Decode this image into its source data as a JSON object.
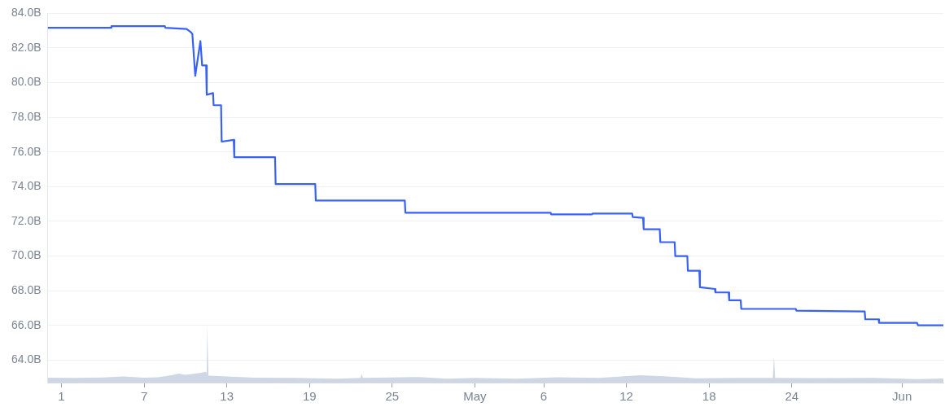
{
  "chart_data": {
    "type": "line",
    "grid": "y",
    "legend": false,
    "marker": "none",
    "xlim": [
      "--03-31",
      "--06-04"
    ],
    "xticks": [
      {
        "value": "--04-01",
        "label": "1"
      },
      {
        "value": "--04-07",
        "label": "7"
      },
      {
        "value": "--04-13",
        "label": "13"
      },
      {
        "value": "--04-19",
        "label": "19"
      },
      {
        "value": "--04-25",
        "label": "25"
      },
      {
        "value": "--05-01",
        "label": "May"
      },
      {
        "value": "--05-06",
        "label": "6"
      },
      {
        "value": "--05-12",
        "label": "12"
      },
      {
        "value": "--05-18",
        "label": "18"
      },
      {
        "value": "--05-24",
        "label": "24"
      },
      {
        "value": "--06-01",
        "label": "Jun"
      }
    ],
    "ylim": [
      62.7,
      84
    ],
    "yticks": [
      {
        "value": 64,
        "label": "64.0B"
      },
      {
        "value": 66,
        "label": "66.0B"
      },
      {
        "value": 68,
        "label": "68.0B"
      },
      {
        "value": 70,
        "label": "70.0B"
      },
      {
        "value": 72,
        "label": "72.0B"
      },
      {
        "value": 74,
        "label": "74.0B"
      },
      {
        "value": 76,
        "label": "76.0B"
      },
      {
        "value": 78,
        "label": "78.0B"
      },
      {
        "value": 80,
        "label": "80.0B"
      },
      {
        "value": 82,
        "label": "82.0B"
      },
      {
        "value": 84,
        "label": "84.0B"
      }
    ],
    "series": [
      {
        "type": "line",
        "color": "#3861fb",
        "x": [
          "--03-31T00:00",
          "--04-04T14:00",
          "--04-04T15:00",
          "--04-08T12:00",
          "--04-08T13:00",
          "--04-10T02:00",
          "--04-10T10:00",
          "--04-10T12:00",
          "--04-10T17:00",
          "--04-11T02:00",
          "--04-11T05:00",
          "--04-11T12:00",
          "--04-11T13:00",
          "--04-12T00:00",
          "--04-12T01:00",
          "--04-12T14:00",
          "--04-12T15:00",
          "--04-13T12:00",
          "--04-13T13:00",
          "--04-16T12:00",
          "--04-16T13:00",
          "--04-19T10:00",
          "--04-19T11:00",
          "--04-25T22:00",
          "--04-25T23:00",
          "--05-06T12:00",
          "--05-06T13:00",
          "--05-09T12:00",
          "--05-09T13:00",
          "--05-12T10:00",
          "--05-12T11:00",
          "--05-13T05:00",
          "--05-13T06:00",
          "--05-14T10:00",
          "--05-14T11:00",
          "--05-15T12:00",
          "--05-15T13:00",
          "--05-16T10:00",
          "--05-16T11:00",
          "--05-17T07:00",
          "--05-17T08:00",
          "--05-18T10:00",
          "--05-18T11:00",
          "--05-19T10:00",
          "--05-19T11:00",
          "--05-20T07:00",
          "--05-20T08:00",
          "--05-24T07:00",
          "--05-24T08:00",
          "--05-29T07:00",
          "--05-29T08:00",
          "--05-30T07:00",
          "--05-30T08:00",
          "--06-02T02:00",
          "--06-02T04:00",
          "--06-04T00:00"
        ],
        "values": [
          83.17,
          83.17,
          83.26,
          83.26,
          83.17,
          83.1,
          82.9,
          82.8,
          80.4,
          82.4,
          81.0,
          81.0,
          79.3,
          79.4,
          78.7,
          78.7,
          76.6,
          76.7,
          75.7,
          75.7,
          74.15,
          74.15,
          73.2,
          73.2,
          72.5,
          72.5,
          72.4,
          72.4,
          72.45,
          72.45,
          72.25,
          72.2,
          71.55,
          71.55,
          70.8,
          70.8,
          70.0,
          70.0,
          69.15,
          69.15,
          68.2,
          68.1,
          67.9,
          67.9,
          67.45,
          67.45,
          66.95,
          66.95,
          66.85,
          66.8,
          66.35,
          66.35,
          66.15,
          66.15,
          66.0,
          66.0
        ]
      },
      {
        "type": "area",
        "color": "#cfd6e4",
        "x": [
          "--03-31T00:00",
          "--04-02T00:00",
          "--04-04T00:00",
          "--04-05T12:00",
          "--04-07T00:00",
          "--04-08T00:00",
          "--04-09T00:00",
          "--04-09T12:00",
          "--04-10T00:00",
          "--04-11T00:00",
          "--04-11T12:00",
          "--04-11T13:00",
          "--04-11T14:00",
          "--04-11T16:00",
          "--04-13T00:00",
          "--04-15T00:00",
          "--04-18T00:00",
          "--04-21T00:00",
          "--04-22T17:00",
          "--04-22T19:00",
          "--04-22T21:00",
          "--04-27T00:00",
          "--04-29T00:00",
          "--05-01T00:00",
          "--05-04T00:00",
          "--05-07T00:00",
          "--05-10T00:00",
          "--05-13T00:00",
          "--05-15T00:00",
          "--05-17T00:00",
          "--05-20T00:00",
          "--05-22T15:00",
          "--05-22T17:00",
          "--05-22T19:00",
          "--05-26T00:00",
          "--05-30T00:00",
          "--06-02T00:00",
          "--06-04T00:00"
        ],
        "values": [
          62.98,
          62.97,
          62.99,
          63.05,
          62.98,
          63.0,
          63.12,
          63.22,
          63.15,
          63.25,
          63.32,
          63.2,
          65.95,
          63.1,
          63.05,
          62.98,
          62.97,
          62.92,
          62.97,
          63.2,
          62.97,
          63.02,
          62.92,
          62.97,
          62.92,
          63.0,
          62.97,
          63.12,
          63.05,
          62.95,
          62.97,
          62.97,
          64.2,
          62.97,
          62.96,
          62.97,
          62.9,
          62.93
        ]
      }
    ]
  }
}
